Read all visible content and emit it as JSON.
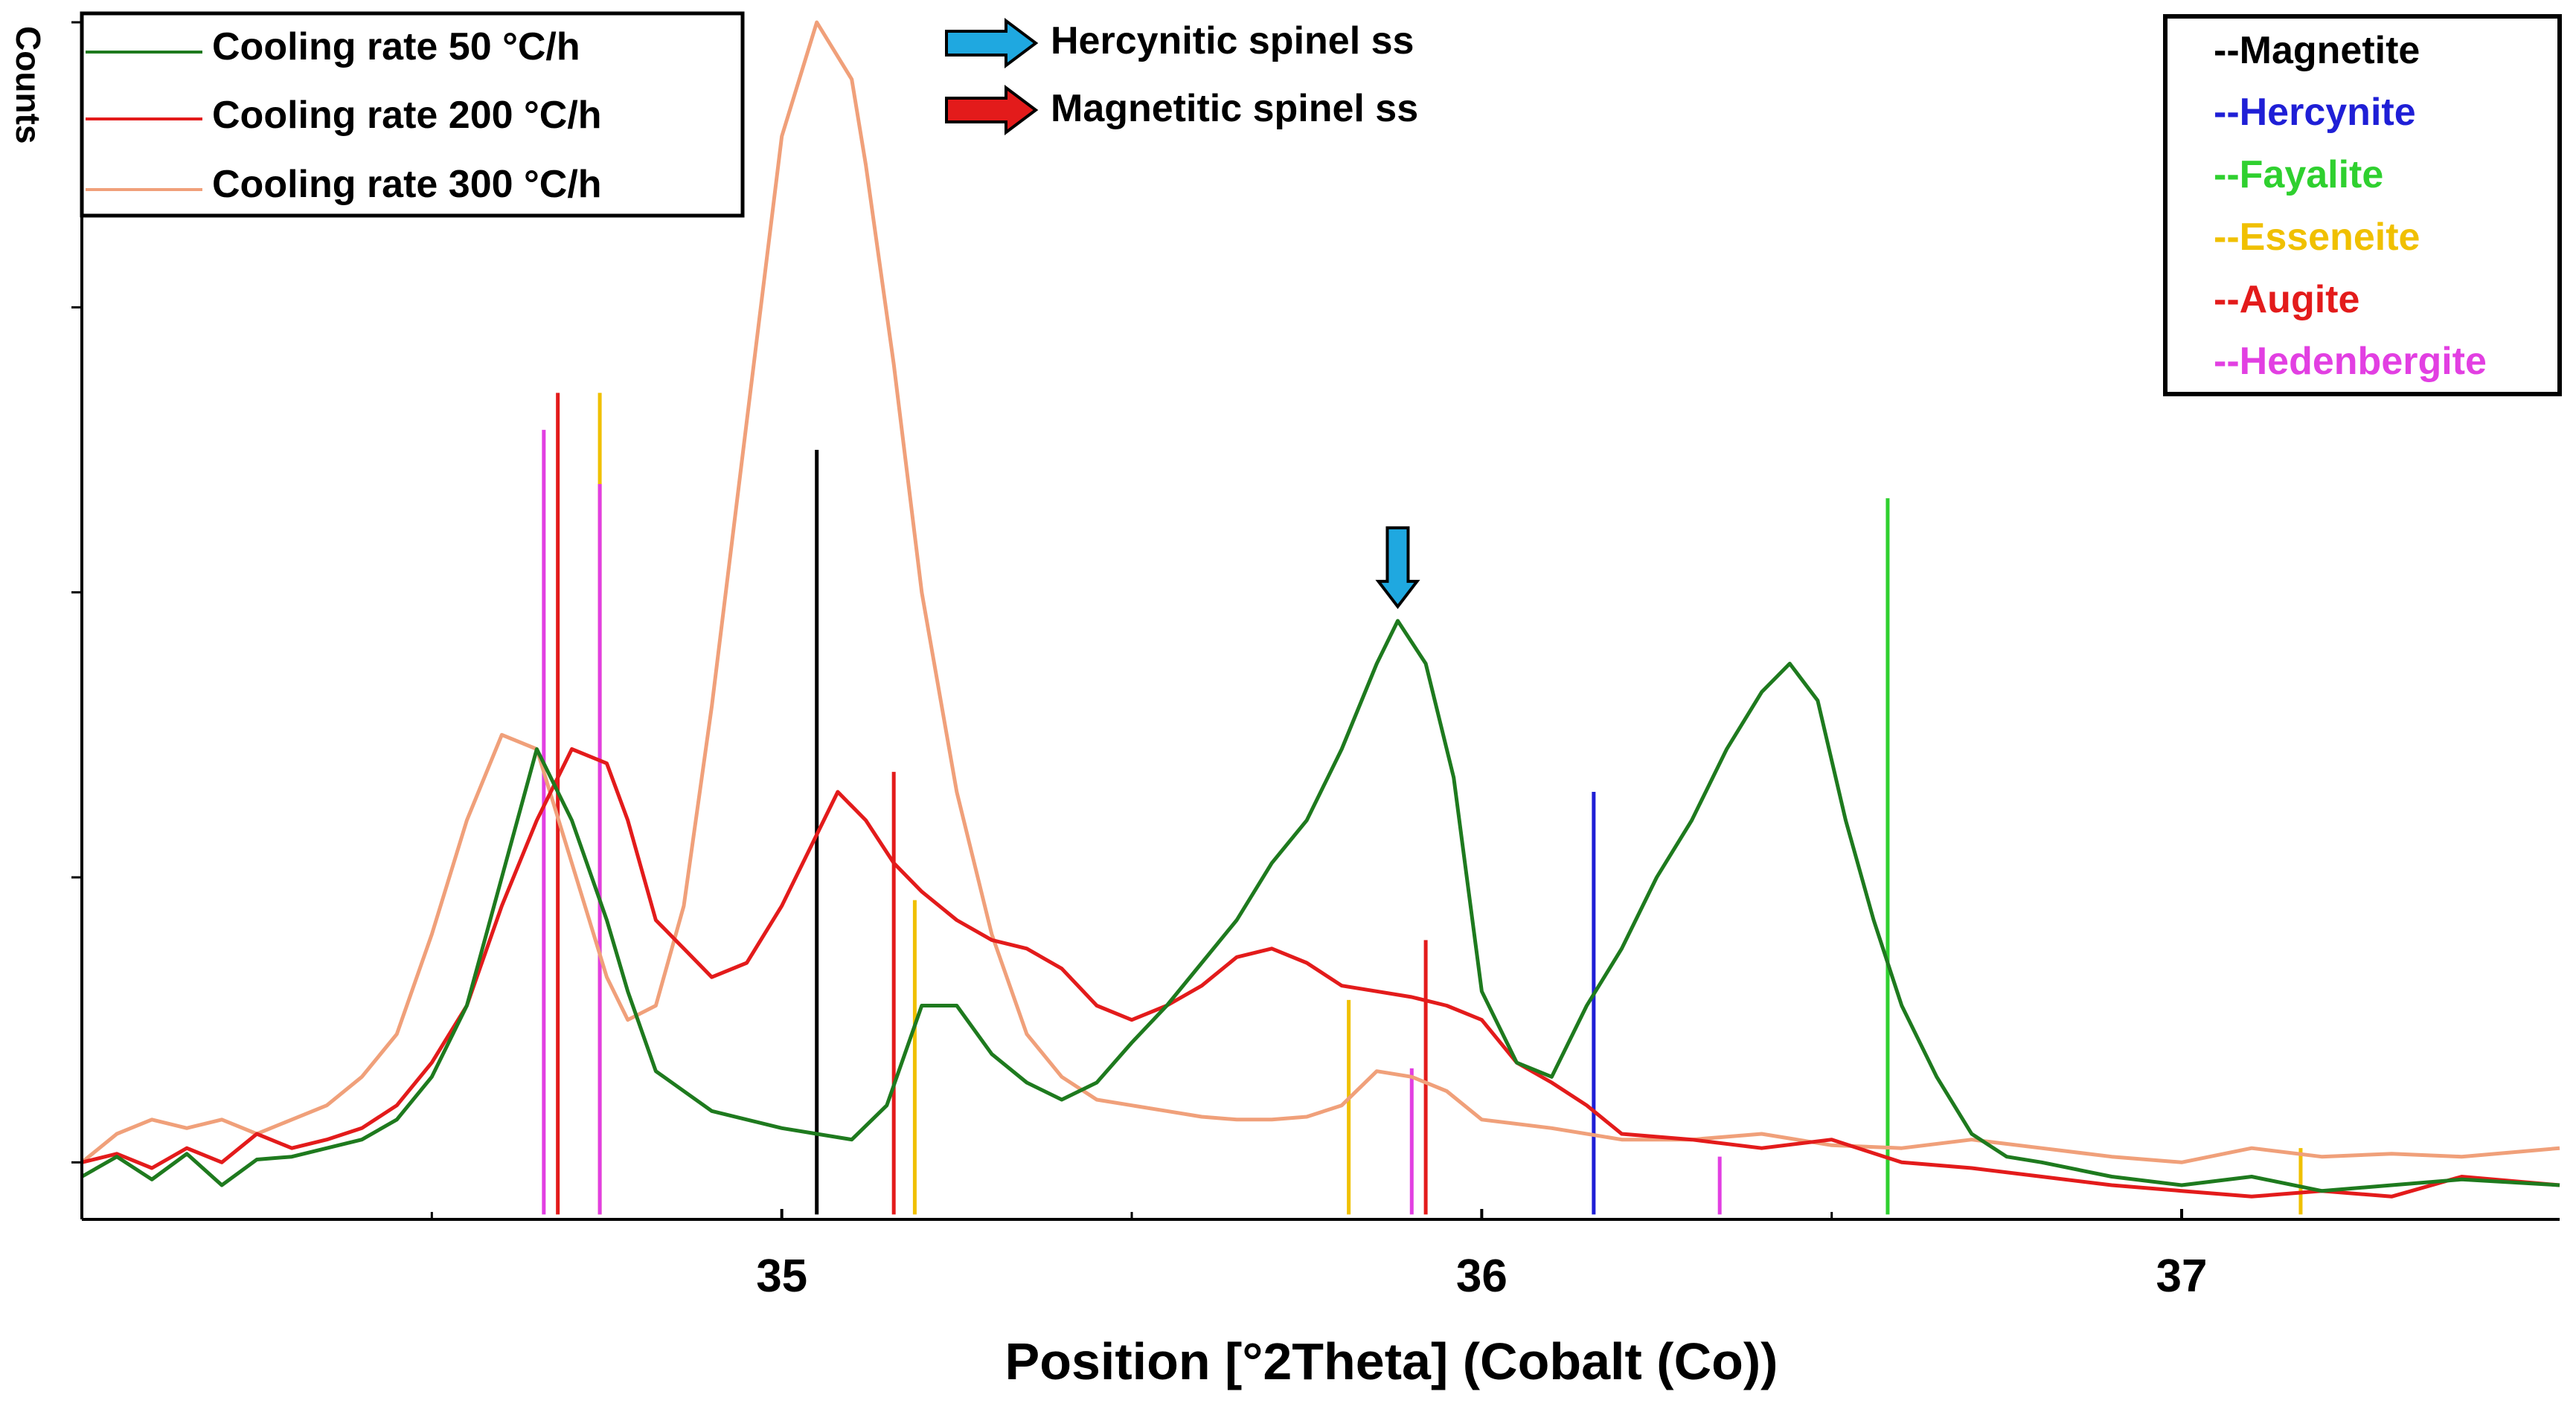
{
  "chart_data": {
    "type": "line",
    "xlabel": "Position [°2Theta] (Cobalt (Co))",
    "ylabel": "Counts",
    "xlim": [
      34.0,
      37.54
    ],
    "ylim": [
      -0.2,
      4.0
    ],
    "x_ticks": [
      35,
      36,
      37
    ],
    "x_minor_ticks": [
      34.5,
      35.5,
      36.5
    ],
    "y_ticks": [
      0,
      1,
      2,
      3,
      4
    ],
    "grid": false,
    "series": [
      {
        "name": "Cooling rate 50 °C/h",
        "color": "#1e7a1e",
        "x": [
          34.0,
          34.05,
          34.1,
          34.15,
          34.2,
          34.25,
          34.3,
          34.35,
          34.4,
          34.45,
          34.5,
          34.55,
          34.6,
          34.65,
          34.7,
          34.75,
          34.78,
          34.82,
          34.86,
          34.9,
          34.95,
          35.0,
          35.05,
          35.1,
          35.15,
          35.2,
          35.25,
          35.3,
          35.35,
          35.4,
          35.45,
          35.5,
          35.55,
          35.6,
          35.65,
          35.7,
          35.75,
          35.8,
          35.85,
          35.88,
          35.92,
          35.96,
          36.0,
          36.05,
          36.1,
          36.15,
          36.2,
          36.25,
          36.3,
          36.35,
          36.4,
          36.44,
          36.48,
          36.52,
          36.56,
          36.6,
          36.65,
          36.7,
          36.75,
          36.8,
          36.9,
          37.0,
          37.1,
          37.2,
          37.3,
          37.4,
          37.54
        ],
        "values": [
          -0.05,
          0.02,
          -0.06,
          0.03,
          -0.08,
          0.01,
          0.02,
          0.05,
          0.08,
          0.15,
          0.3,
          0.55,
          1.0,
          1.45,
          1.2,
          0.85,
          0.6,
          0.32,
          0.25,
          0.18,
          0.15,
          0.12,
          0.1,
          0.08,
          0.2,
          0.55,
          0.55,
          0.38,
          0.28,
          0.22,
          0.28,
          0.42,
          0.55,
          0.7,
          0.85,
          1.05,
          1.2,
          1.45,
          1.75,
          1.9,
          1.75,
          1.35,
          0.6,
          0.35,
          0.3,
          0.55,
          0.75,
          1.0,
          1.2,
          1.45,
          1.65,
          1.75,
          1.62,
          1.2,
          0.85,
          0.55,
          0.3,
          0.1,
          0.02,
          0.0,
          -0.05,
          -0.08,
          -0.05,
          -0.1,
          -0.08,
          -0.06,
          -0.08
        ]
      },
      {
        "name": "Cooling rate 200 °C/h",
        "color": "#e31b1b",
        "x": [
          34.0,
          34.05,
          34.1,
          34.15,
          34.2,
          34.25,
          34.3,
          34.35,
          34.4,
          34.45,
          34.5,
          34.55,
          34.6,
          34.65,
          34.7,
          34.75,
          34.78,
          34.82,
          34.86,
          34.9,
          34.95,
          35.0,
          35.05,
          35.08,
          35.12,
          35.16,
          35.2,
          35.25,
          35.3,
          35.35,
          35.4,
          35.45,
          35.5,
          35.55,
          35.6,
          35.65,
          35.7,
          35.75,
          35.8,
          35.85,
          35.9,
          35.95,
          36.0,
          36.05,
          36.1,
          36.15,
          36.2,
          36.3,
          36.4,
          36.5,
          36.6,
          36.7,
          36.8,
          36.9,
          37.0,
          37.1,
          37.2,
          37.3,
          37.4,
          37.54
        ],
        "values": [
          0.0,
          0.03,
          -0.02,
          0.05,
          0.0,
          0.1,
          0.05,
          0.08,
          0.12,
          0.2,
          0.35,
          0.55,
          0.9,
          1.2,
          1.45,
          1.4,
          1.2,
          0.85,
          0.75,
          0.65,
          0.7,
          0.9,
          1.15,
          1.3,
          1.2,
          1.05,
          0.95,
          0.85,
          0.78,
          0.75,
          0.68,
          0.55,
          0.5,
          0.55,
          0.62,
          0.72,
          0.75,
          0.7,
          0.62,
          0.6,
          0.58,
          0.55,
          0.5,
          0.35,
          0.28,
          0.2,
          0.1,
          0.08,
          0.05,
          0.08,
          0.0,
          -0.02,
          -0.05,
          -0.08,
          -0.1,
          -0.12,
          -0.1,
          -0.12,
          -0.05,
          -0.08
        ]
      },
      {
        "name": "Cooling rate 300 °C/h",
        "color": "#f0a07a",
        "x": [
          34.0,
          34.05,
          34.1,
          34.15,
          34.2,
          34.25,
          34.3,
          34.35,
          34.4,
          34.45,
          34.5,
          34.55,
          34.6,
          34.65,
          34.7,
          34.75,
          34.78,
          34.82,
          34.86,
          34.9,
          34.95,
          35.0,
          35.05,
          35.1,
          35.12,
          35.16,
          35.2,
          35.25,
          35.3,
          35.35,
          35.4,
          35.45,
          35.5,
          35.55,
          35.6,
          35.65,
          35.7,
          35.75,
          35.8,
          35.85,
          35.9,
          35.95,
          36.0,
          36.1,
          36.2,
          36.3,
          36.4,
          36.5,
          36.6,
          36.7,
          36.8,
          36.9,
          37.0,
          37.1,
          37.2,
          37.3,
          37.4,
          37.54
        ],
        "values": [
          0.0,
          0.1,
          0.15,
          0.12,
          0.15,
          0.1,
          0.15,
          0.2,
          0.3,
          0.45,
          0.8,
          1.2,
          1.5,
          1.45,
          1.05,
          0.65,
          0.5,
          0.55,
          0.9,
          1.6,
          2.6,
          3.6,
          4.0,
          3.8,
          3.5,
          2.8,
          2.0,
          1.3,
          0.8,
          0.45,
          0.3,
          0.22,
          0.2,
          0.18,
          0.16,
          0.15,
          0.15,
          0.16,
          0.2,
          0.32,
          0.3,
          0.25,
          0.15,
          0.12,
          0.08,
          0.08,
          0.1,
          0.06,
          0.05,
          0.08,
          0.05,
          0.02,
          0.0,
          0.05,
          0.02,
          0.03,
          0.02,
          0.05
        ]
      }
    ],
    "reference_lines": [
      {
        "phase": "Magnetite",
        "color": "#000000",
        "lines": [
          {
            "x": 35.05,
            "h": 2.5
          }
        ]
      },
      {
        "phase": "Hercynite",
        "color": "#1f1fd6",
        "lines": [
          {
            "x": 36.16,
            "h": 1.3
          }
        ]
      },
      {
        "phase": "Fayalite",
        "color": "#2fd02f",
        "lines": [
          {
            "x": 36.58,
            "h": 2.33
          }
        ]
      },
      {
        "phase": "Esseneite",
        "color": "#f0c000",
        "lines": [
          {
            "x": 34.74,
            "h": 2.7
          },
          {
            "x": 35.19,
            "h": 0.92
          },
          {
            "x": 35.81,
            "h": 0.57
          },
          {
            "x": 37.17,
            "h": 0.05
          }
        ]
      },
      {
        "phase": "Augite",
        "color": "#e31b1b",
        "lines": [
          {
            "x": 34.68,
            "h": 2.7
          },
          {
            "x": 35.16,
            "h": 1.37
          },
          {
            "x": 35.92,
            "h": 0.78
          }
        ]
      },
      {
        "phase": "Hedenbergite",
        "color": "#e23fe2",
        "lines": [
          {
            "x": 34.66,
            "h": 2.57
          },
          {
            "x": 34.74,
            "h": 2.38
          },
          {
            "x": 35.9,
            "h": 0.33
          },
          {
            "x": 36.34,
            "h": 0.02
          }
        ]
      }
    ],
    "markers": [
      {
        "label": "Magnetitic spinel ss",
        "color": "#e31b1b",
        "x": 35.11,
        "y": 4.1
      },
      {
        "label": "Hercynitic spinel ss",
        "color": "#1fa8e0",
        "x": 35.88,
        "y": 1.95
      }
    ],
    "legend_rates": {
      "placement": "top-left",
      "items": [
        "Cooling rate 50 °C/h",
        "Cooling rate 200 °C/h",
        "Cooling rate 300 °C/h"
      ]
    },
    "legend_arrows": {
      "placement": "top-center",
      "items": [
        {
          "label": "Hercynitic spinel ss",
          "color": "#1fa8e0"
        },
        {
          "label": "Magnetitic spinel ss",
          "color": "#e31b1b"
        }
      ]
    },
    "legend_phases": {
      "placement": "top-right",
      "items": [
        {
          "label": "--Magnetite",
          "color": "#000000"
        },
        {
          "label": "--Hercynite",
          "color": "#1f1fd6"
        },
        {
          "label": "--Fayalite",
          "color": "#2fd02f"
        },
        {
          "label": "--Esseneite",
          "color": "#f0c000"
        },
        {
          "label": "--Augite",
          "color": "#e31b1b"
        },
        {
          "label": "--Hedenbergite",
          "color": "#e23fe2"
        }
      ]
    }
  }
}
